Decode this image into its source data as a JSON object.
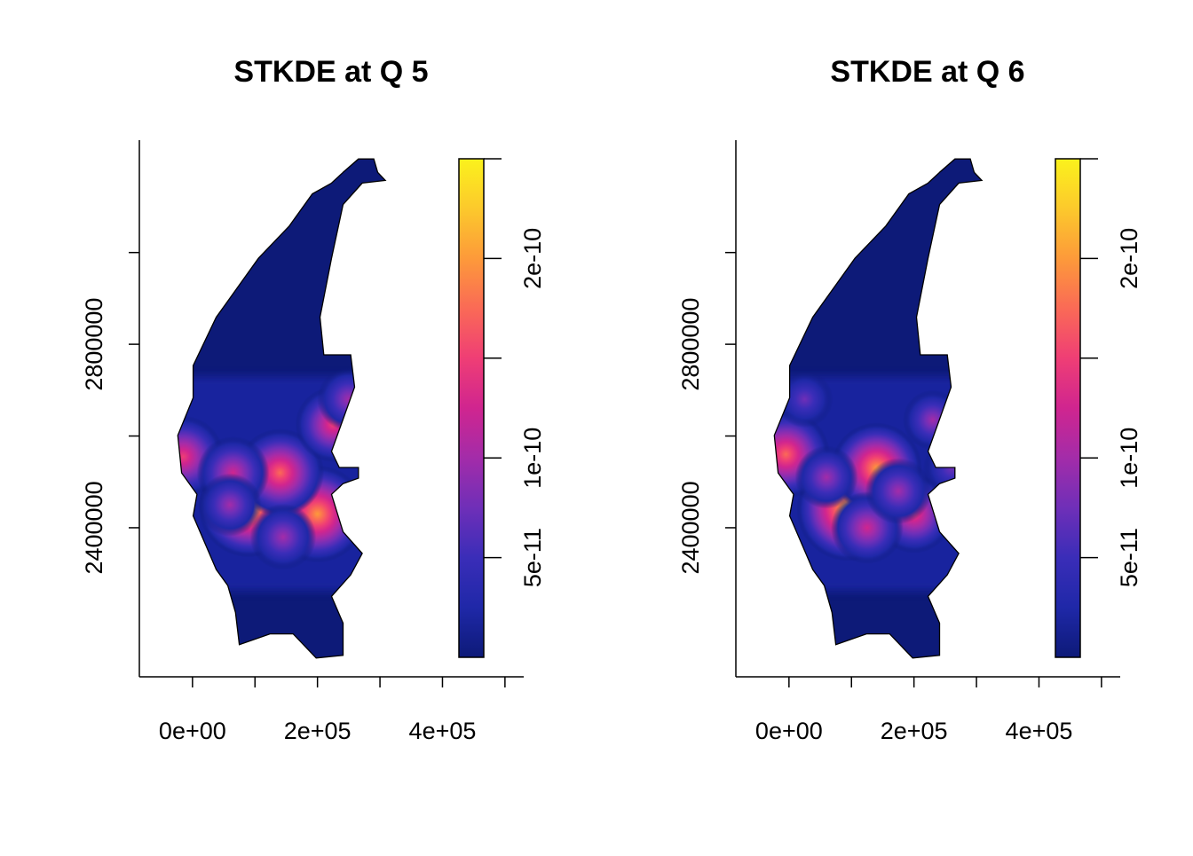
{
  "panels": [
    {
      "title": "STKDE at Q 5",
      "chart_data": {
        "type": "heatmap",
        "title": "STKDE at Q 5",
        "xlim": [
          -85000,
          530000
        ],
        "ylim": [
          2075000,
          3245000
        ],
        "x_ticks": [
          0,
          100000,
          200000,
          300000,
          400000,
          500000
        ],
        "x_tick_labels": [
          "0e+00",
          "2e+05",
          "4e+05"
        ],
        "x_tick_label_values": [
          0,
          200000,
          400000
        ],
        "y_ticks": [
          2400000,
          2600000,
          2800000,
          3000000
        ],
        "y_tick_labels": [
          "2400000",
          "2800000"
        ],
        "y_tick_label_values": [
          2400000,
          2800000
        ],
        "colorbar": {
          "min": 0,
          "max": 2.5e-10,
          "ticks": [
            5e-11,
            1e-10,
            1.5e-10,
            2e-10,
            2.5e-10
          ],
          "tick_labels": [
            "5e-11",
            "1e-10",
            "2e-10"
          ],
          "tick_label_values": [
            5e-11,
            1e-10,
            2e-10
          ],
          "palette": [
            "#0d1a78",
            "#1f28a8",
            "#3a2db8",
            "#6f2fb8",
            "#a32ca9",
            "#d0258f",
            "#ef3e75",
            "#fa6a56",
            "#fd9a3a",
            "#fcc92c",
            "#fbf21c"
          ]
        },
        "hotspots": [
          {
            "x": 90000,
            "y": 2445000,
            "value": 2.2e-10
          },
          {
            "x": 200000,
            "y": 2430000,
            "value": 2.1e-10
          },
          {
            "x": 140000,
            "y": 2520000,
            "value": 1.8e-10
          },
          {
            "x": -15000,
            "y": 2555000,
            "value": 1.6e-10
          },
          {
            "x": 65000,
            "y": 2520000,
            "value": 1.3e-10
          },
          {
            "x": 225000,
            "y": 2625000,
            "value": 1.4e-10
          },
          {
            "x": 250000,
            "y": 2680000,
            "value": 1e-10
          },
          {
            "x": 145000,
            "y": 2380000,
            "value": 1.1e-10
          },
          {
            "x": 60000,
            "y": 2450000,
            "value": 1e-10
          }
        ]
      }
    },
    {
      "title": "STKDE at Q 6",
      "chart_data": {
        "type": "heatmap",
        "title": "STKDE at Q 6",
        "xlim": [
          -85000,
          530000
        ],
        "ylim": [
          2075000,
          3245000
        ],
        "x_ticks": [
          0,
          100000,
          200000,
          300000,
          400000,
          500000
        ],
        "x_tick_labels": [
          "0e+00",
          "2e+05",
          "4e+05"
        ],
        "x_tick_label_values": [
          0,
          200000,
          400000
        ],
        "y_ticks": [
          2400000,
          2600000,
          2800000,
          3000000
        ],
        "y_tick_labels": [
          "2400000",
          "2800000"
        ],
        "y_tick_label_values": [
          2400000,
          2800000
        ],
        "colorbar": {
          "min": 0,
          "max": 2.5e-10,
          "ticks": [
            5e-11,
            1e-10,
            1.5e-10,
            2e-10,
            2.5e-10
          ],
          "tick_labels": [
            "5e-11",
            "1e-10",
            "2e-10"
          ],
          "tick_label_values": [
            5e-11,
            1e-10,
            2e-10
          ],
          "palette": [
            "#0d1a78",
            "#1f28a8",
            "#3a2db8",
            "#6f2fb8",
            "#a32ca9",
            "#d0258f",
            "#ef3e75",
            "#fa6a56",
            "#fd9a3a",
            "#fcc92c",
            "#fbf21c"
          ]
        },
        "hotspots": [
          {
            "x": 95000,
            "y": 2440000,
            "value": 2.3e-10
          },
          {
            "x": 140000,
            "y": 2530000,
            "value": 1.9e-10
          },
          {
            "x": 200000,
            "y": 2430000,
            "value": 1.5e-10
          },
          {
            "x": -5000,
            "y": 2560000,
            "value": 1.8e-10
          },
          {
            "x": 125000,
            "y": 2400000,
            "value": 1.3e-10
          },
          {
            "x": 175000,
            "y": 2480000,
            "value": 1.1e-10
          },
          {
            "x": 230000,
            "y": 2635000,
            "value": 9e-11
          },
          {
            "x": 260000,
            "y": 2530000,
            "value": 8e-11
          },
          {
            "x": 60000,
            "y": 2510000,
            "value": 1e-10
          },
          {
            "x": 25000,
            "y": 2680000,
            "value": 8e-11
          }
        ]
      }
    }
  ]
}
